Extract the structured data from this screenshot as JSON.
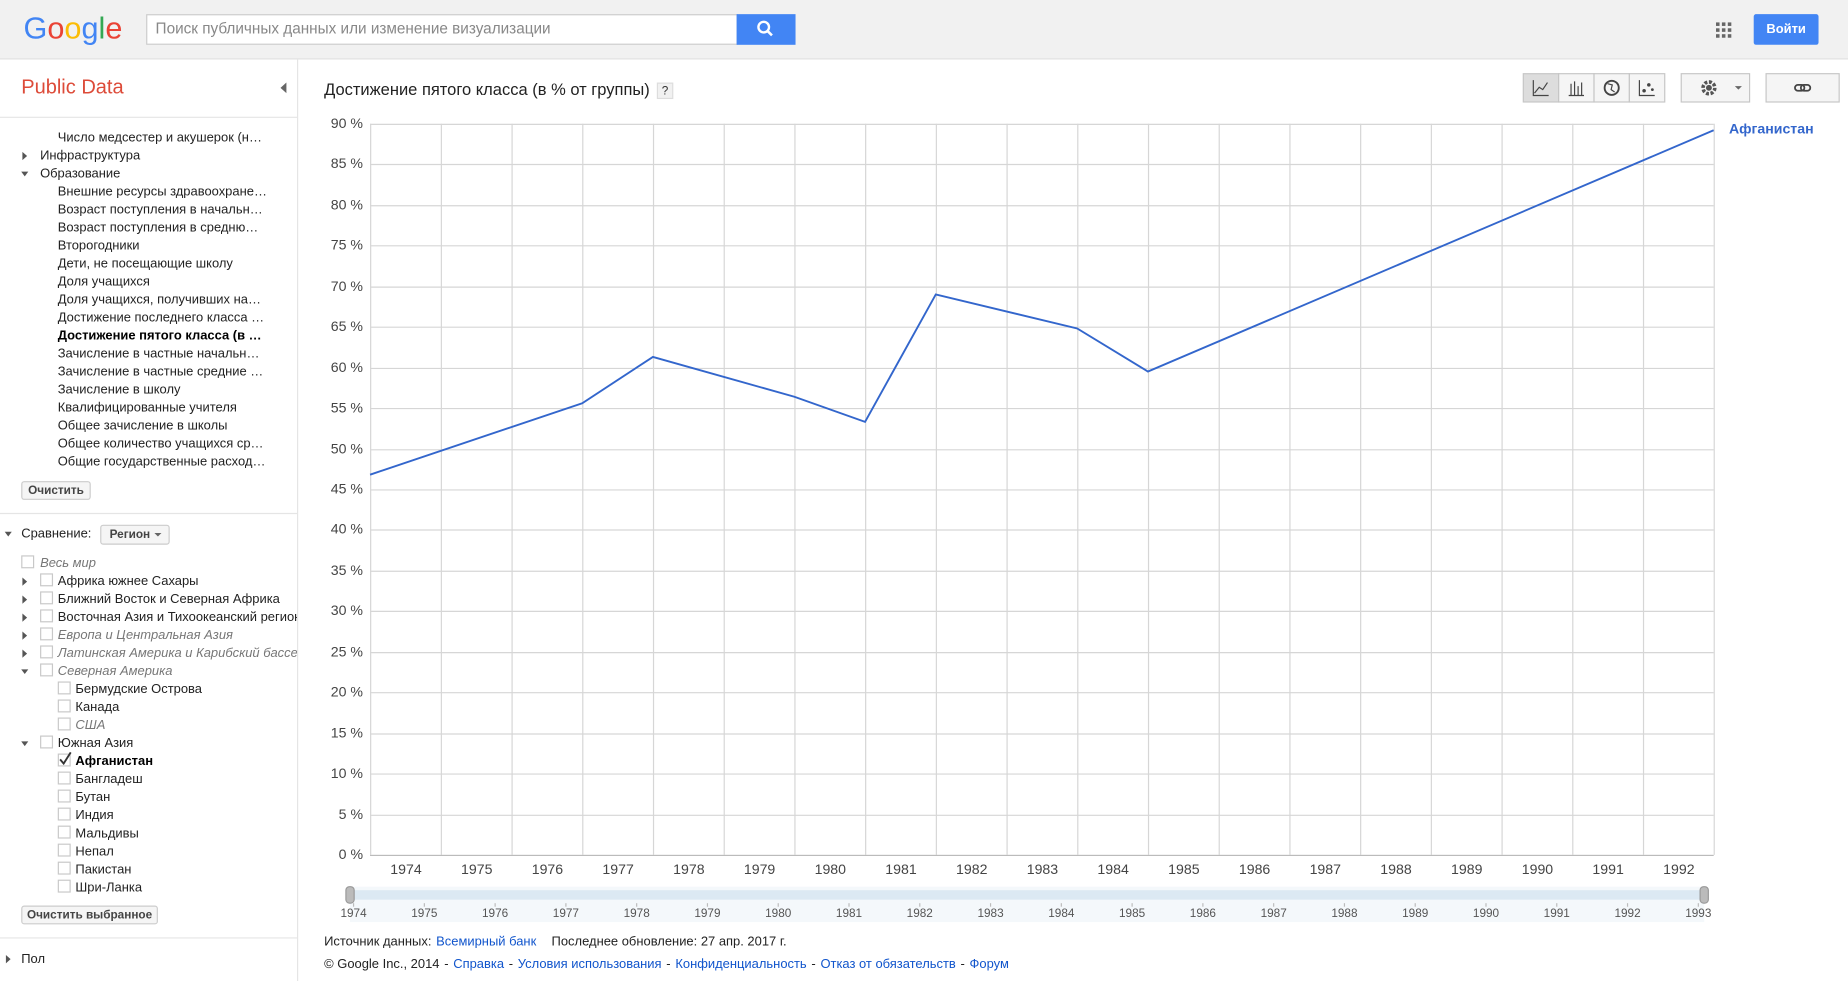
{
  "header": {
    "logo": "Google",
    "search_placeholder": "Поиск публичных данных или изменение визуализации",
    "sign_in": "Войти"
  },
  "sidebar": {
    "title": "Public Data",
    "topics": [
      "Число медсестер и акушерок (н…",
      "Инфраструктура",
      "Образование",
      "Внешние ресурсы здравоохране…",
      "Возраст поступления в начальн…",
      "Возраст поступления в средню…",
      "Второгодники",
      "Дети, не посещающие школу",
      "Доля учащихся",
      "Доля учащихся, получивших на…",
      "Достижение последнего класса …",
      "Достижение пятого класса (в …",
      "Зачисление в частные начальн…",
      "Зачисление в частные средние …",
      "Зачисление в школу",
      "Квалифицированные учителя",
      "Общее зачисление в школы",
      "Общее количество учащихся ср…",
      "Общие государственные расход…"
    ],
    "clear": "Очистить",
    "compare_label": "Сравнение:",
    "compare_select": "Регион",
    "regions": [
      "Весь мир",
      "Африка южнее Сахары",
      "Ближний Восток и Северная Африка",
      "Восточная Азия и Тихоокеанский регион",
      "Европа и Центральная Азия",
      "Латинская Америка и Карибский бассейн",
      "Северная Америка",
      "Бермудские Острова",
      "Канада",
      "США",
      "Южная Азия",
      "Афганистан",
      "Бангладеш",
      "Бутан",
      "Индия",
      "Мальдивы",
      "Непал",
      "Пакистан",
      "Шри-Ланка"
    ],
    "clear_selected": "Очистить выбранное",
    "gender": "Пол"
  },
  "chart_data": {
    "type": "line",
    "title": "Достижение пятого класса (в % от группы)",
    "help": "?",
    "x": [
      1974,
      1977,
      1978,
      1980,
      1981,
      1982,
      1984,
      1985,
      1993
    ],
    "series": [
      {
        "name": "Афганистан",
        "color": "#3366cc",
        "values": [
          46.8,
          55.6,
          61.3,
          56.4,
          53.3,
          69.0,
          64.8,
          59.5,
          89.2
        ]
      }
    ],
    "xlim": [
      1974,
      1993
    ],
    "xticks": [
      1974,
      1975,
      1976,
      1977,
      1978,
      1979,
      1980,
      1981,
      1982,
      1983,
      1984,
      1985,
      1986,
      1987,
      1988,
      1989,
      1990,
      1991,
      1992
    ],
    "ylim": [
      0,
      90
    ],
    "yticks": [
      {
        "value": 0,
        "label": "0 %"
      },
      {
        "value": 5,
        "label": "5 %"
      },
      {
        "value": 10,
        "label": "10 %"
      },
      {
        "value": 15,
        "label": "15 %"
      },
      {
        "value": 20,
        "label": "20 %"
      },
      {
        "value": 25,
        "label": "25 %"
      },
      {
        "value": 30,
        "label": "30 %"
      },
      {
        "value": 35,
        "label": "35 %"
      },
      {
        "value": 40,
        "label": "40 %"
      },
      {
        "value": 45,
        "label": "45 %"
      },
      {
        "value": 50,
        "label": "50 %"
      },
      {
        "value": 55,
        "label": "55 %"
      },
      {
        "value": 60,
        "label": "60 %"
      },
      {
        "value": 65,
        "label": "65 %"
      },
      {
        "value": 70,
        "label": "70 %"
      },
      {
        "value": 75,
        "label": "75 %"
      },
      {
        "value": 80,
        "label": "80 %"
      },
      {
        "value": 85,
        "label": "85 %"
      },
      {
        "value": 90,
        "label": "90 %"
      }
    ],
    "grid": true
  },
  "timeline": {
    "years": [
      1974,
      1975,
      1976,
      1977,
      1978,
      1979,
      1980,
      1981,
      1982,
      1983,
      1984,
      1985,
      1986,
      1987,
      1988,
      1989,
      1990,
      1991,
      1992,
      1993
    ]
  },
  "footer": {
    "source_label": "Источник данных:",
    "source_link": "Всемирный банк",
    "updated": "Последнее обновление: 27 апр. 2017 г.",
    "copyright": "© Google Inc., 2014",
    "separator": "-",
    "links": [
      "Справка",
      "Условия использования",
      "Конфиденциальность",
      "Отказ от обязательств",
      "Форум"
    ]
  }
}
